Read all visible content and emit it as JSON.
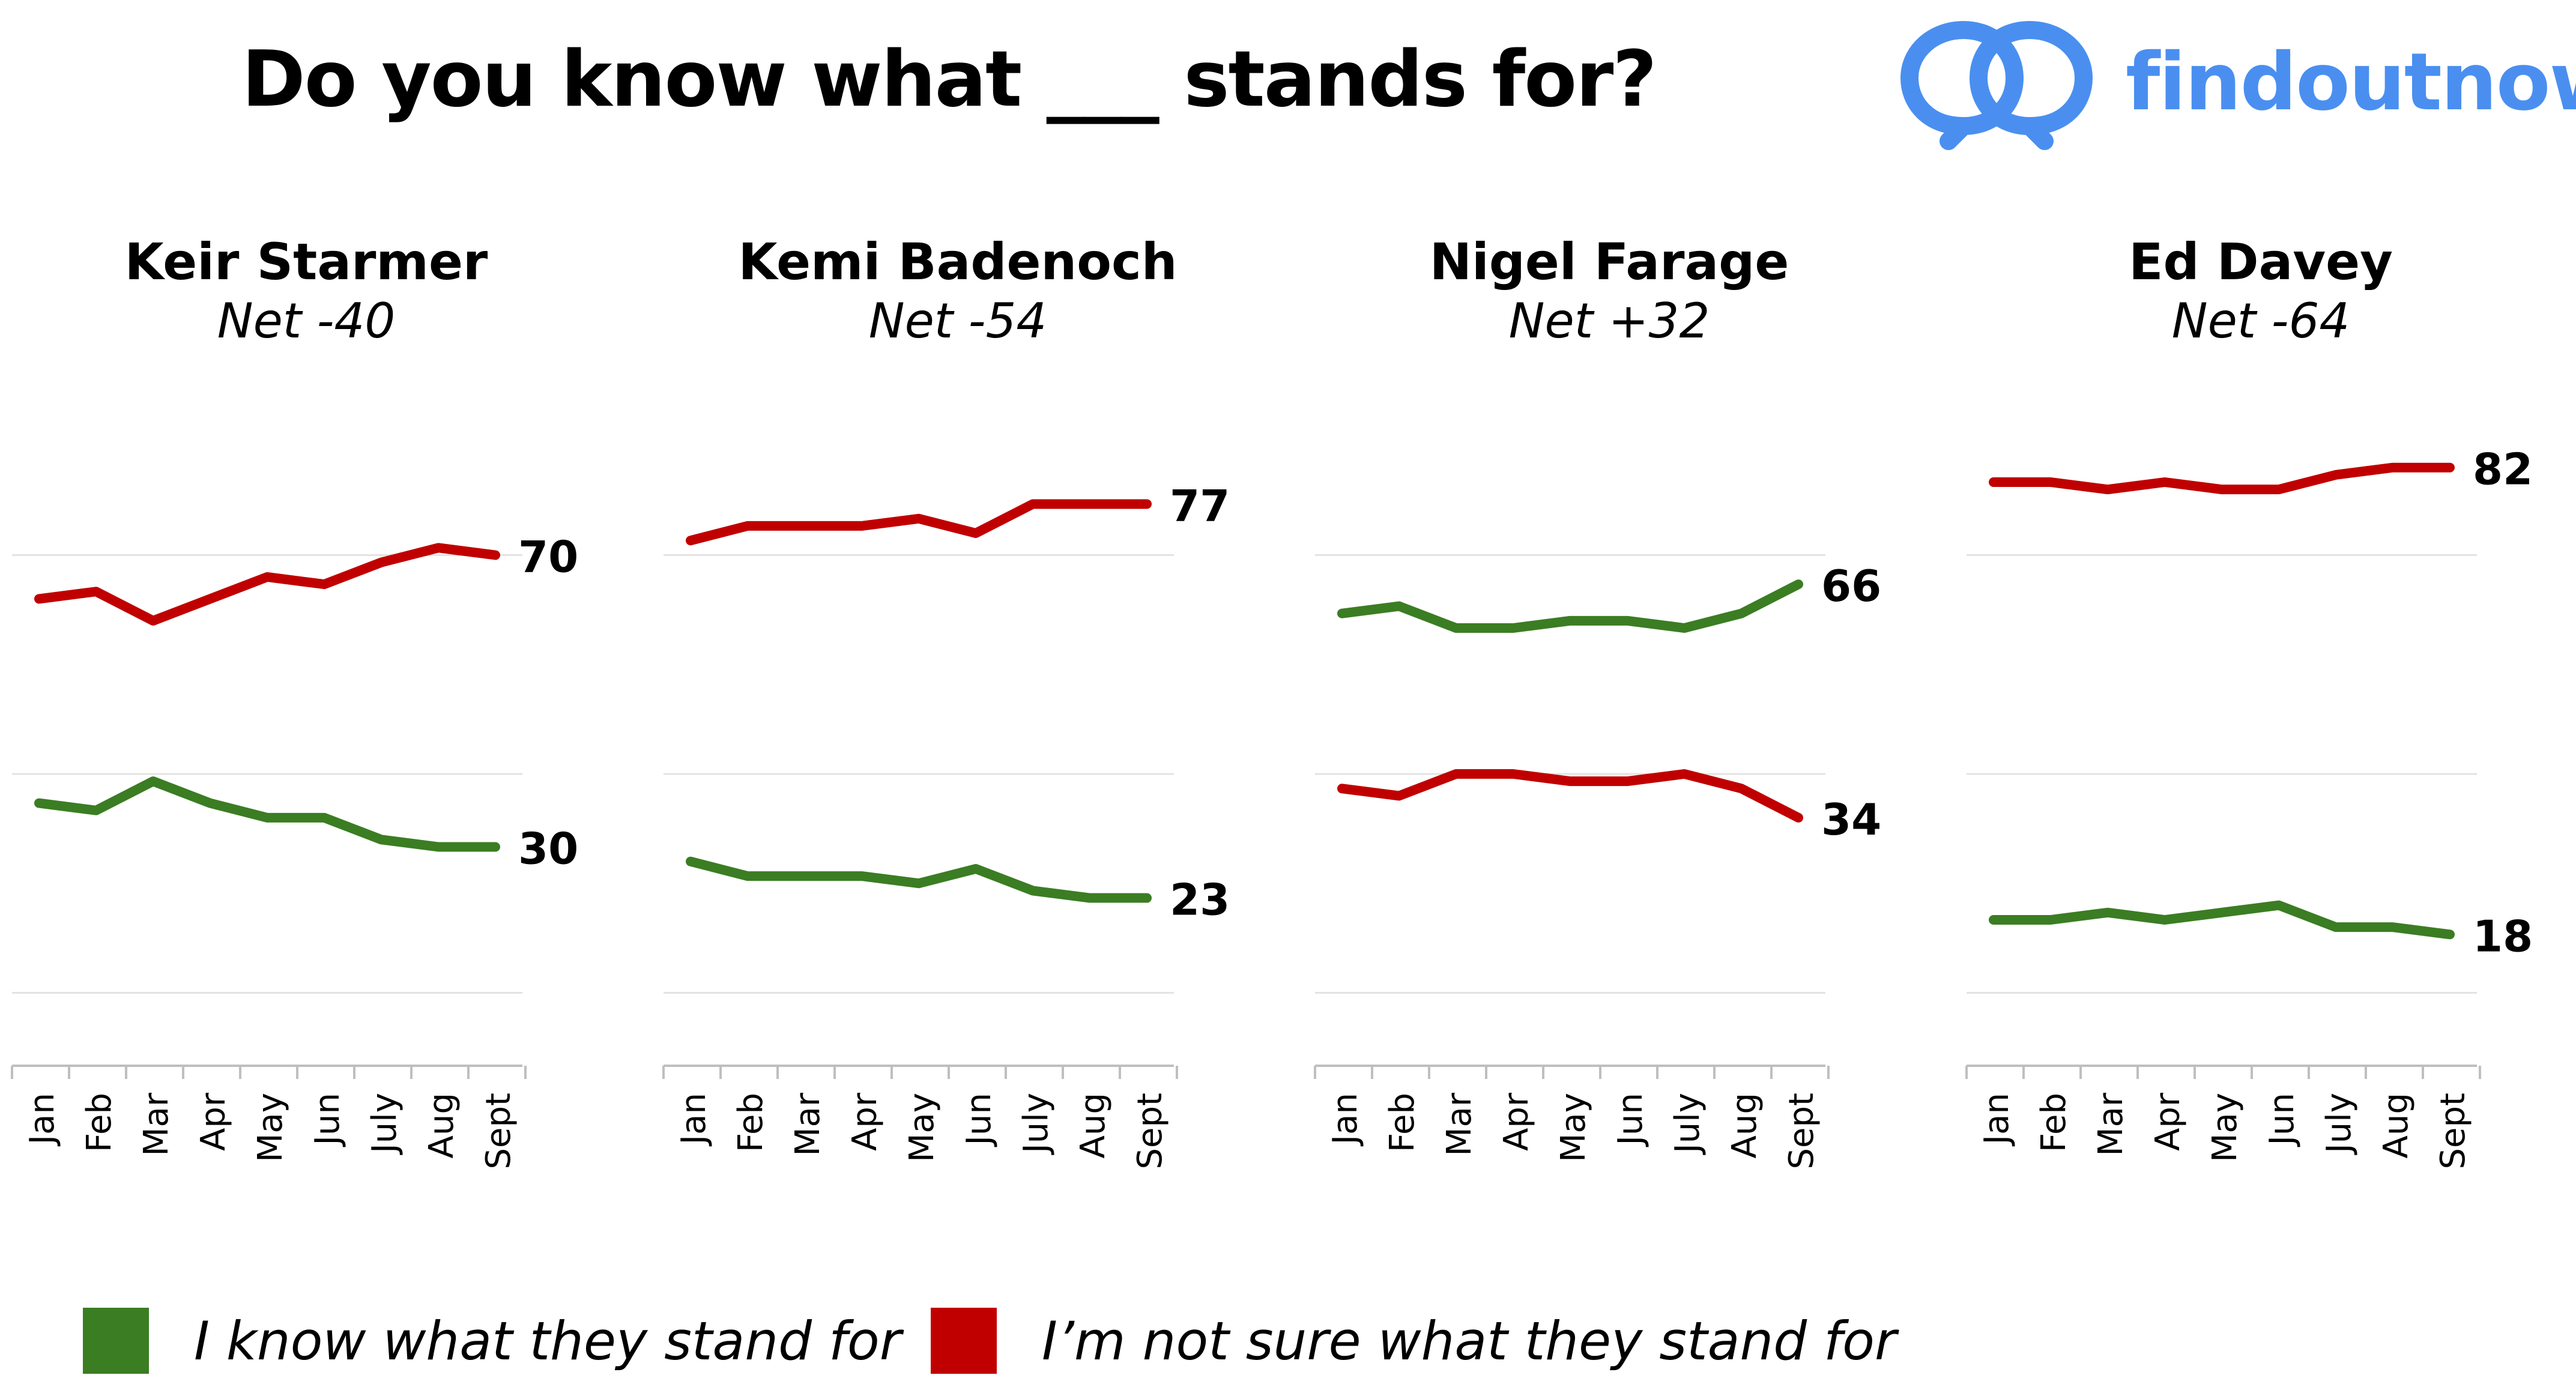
{
  "title": "Do you know what ___ stands for?",
  "brand": {
    "name": "findoutnow",
    "color": "#4a8ff0",
    "icon": "speech-bubbles-logo"
  },
  "colors": {
    "know": "#3b7d23",
    "not_sure": "#c00000",
    "gridline": "#e3e3e3",
    "axis": "#bfbfbf"
  },
  "legend": [
    {
      "label": "I know what they stand for",
      "color": "#3b7d23"
    },
    {
      "label": "I’m not sure what they stand for",
      "color": "#c00000"
    }
  ],
  "chart_data": [
    {
      "type": "line",
      "title": "Keir Starmer",
      "subtitle": "Net -40",
      "categories": [
        "Jan",
        "Feb",
        "Mar",
        "Apr",
        "May",
        "Jun",
        "July",
        "Aug",
        "Sept"
      ],
      "series": [
        {
          "name": "I know what they stand for",
          "color": "#3b7d23",
          "values": [
            36,
            35,
            39,
            36,
            34,
            34,
            31,
            30,
            30
          ]
        },
        {
          "name": "I’m not sure what they stand for",
          "color": "#c00000",
          "values": [
            64,
            65,
            61,
            64,
            67,
            66,
            69,
            71,
            70
          ]
        }
      ],
      "end_labels": [
        "30",
        "70"
      ],
      "ylim": [
        0,
        100
      ],
      "grid": true
    },
    {
      "type": "line",
      "title": "Kemi Badenoch",
      "subtitle": "Net -54",
      "categories": [
        "Jan",
        "Feb",
        "Mar",
        "Apr",
        "May",
        "Jun",
        "July",
        "Aug",
        "Sept"
      ],
      "series": [
        {
          "name": "I know what they stand for",
          "color": "#3b7d23",
          "values": [
            28,
            26,
            26,
            26,
            25,
            27,
            24,
            23,
            23
          ]
        },
        {
          "name": "I’m not sure what they stand for",
          "color": "#c00000",
          "values": [
            72,
            74,
            74,
            74,
            75,
            73,
            77,
            77,
            77
          ]
        }
      ],
      "end_labels": [
        "23",
        "77"
      ],
      "ylim": [
        0,
        100
      ],
      "grid": true
    },
    {
      "type": "line",
      "title": "Nigel Farage",
      "subtitle": "Net +32",
      "categories": [
        "Jan",
        "Feb",
        "Mar",
        "Apr",
        "May",
        "Jun",
        "July",
        "Aug",
        "Sept"
      ],
      "series": [
        {
          "name": "I know what they stand for",
          "color": "#3b7d23",
          "values": [
            62,
            63,
            60,
            60,
            61,
            61,
            60,
            62,
            66
          ]
        },
        {
          "name": "I’m not sure what they stand for",
          "color": "#c00000",
          "values": [
            38,
            37,
            40,
            40,
            39,
            39,
            40,
            38,
            34
          ]
        }
      ],
      "end_labels": [
        "66",
        "34"
      ],
      "ylim": [
        0,
        100
      ],
      "grid": true
    },
    {
      "type": "line",
      "title": "Ed Davey",
      "subtitle": "Net -64",
      "categories": [
        "Jan",
        "Feb",
        "Mar",
        "Apr",
        "May",
        "Jun",
        "July",
        "Aug",
        "Sept"
      ],
      "series": [
        {
          "name": "I know what they stand for",
          "color": "#3b7d23",
          "values": [
            20,
            20,
            21,
            20,
            21,
            22,
            19,
            19,
            18
          ]
        },
        {
          "name": "I’m not sure what they stand for",
          "color": "#c00000",
          "values": [
            80,
            80,
            79,
            80,
            79,
            79,
            81,
            82,
            82
          ]
        }
      ],
      "end_labels": [
        "18",
        "82"
      ],
      "ylim": [
        0,
        100
      ],
      "grid": true
    }
  ]
}
